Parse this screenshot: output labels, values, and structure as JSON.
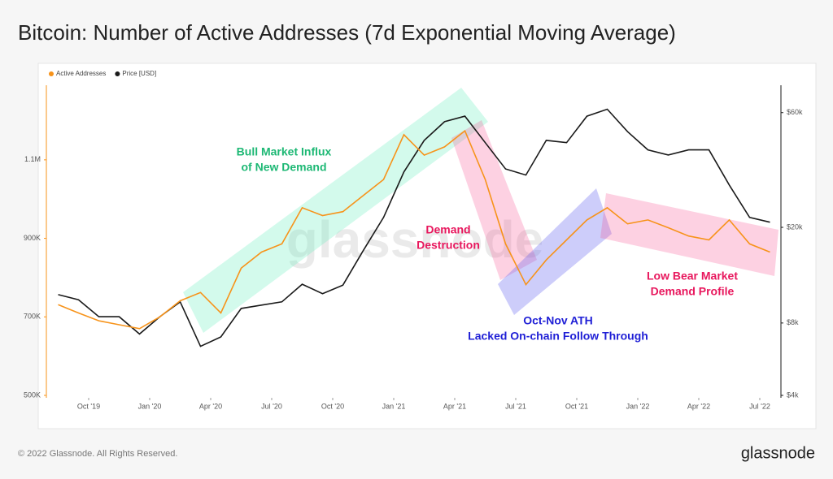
{
  "page_title": "Bitcoin: Number of Active Addresses (7d Exponential Moving Average)",
  "footer": {
    "copyright": "© 2022 Glassnode. All Rights Reserved.",
    "logo": "glassnode"
  },
  "chart_data": {
    "type": "line",
    "watermark": "glassnode",
    "x": [
      "2019-08",
      "2019-09",
      "2019-10",
      "2019-11",
      "2019-12",
      "2020-01",
      "2020-02",
      "2020-03",
      "2020-04",
      "2020-05",
      "2020-06",
      "2020-07",
      "2020-08",
      "2020-09",
      "2020-10",
      "2020-11",
      "2020-12",
      "2021-01",
      "2021-02",
      "2021-03",
      "2021-04",
      "2021-05",
      "2021-06",
      "2021-07",
      "2021-08",
      "2021-09",
      "2021-10",
      "2021-11",
      "2021-12",
      "2022-01",
      "2022-02",
      "2022-03",
      "2022-04",
      "2022-05",
      "2022-06",
      "2022-07"
    ],
    "xticks": [
      {
        "value": "2019-10",
        "label": "Oct '19"
      },
      {
        "value": "2020-01",
        "label": "Jan '20"
      },
      {
        "value": "2020-04",
        "label": "Apr '20"
      },
      {
        "value": "2020-07",
        "label": "Jul '20"
      },
      {
        "value": "2020-10",
        "label": "Oct '20"
      },
      {
        "value": "2021-01",
        "label": "Jan '21"
      },
      {
        "value": "2021-04",
        "label": "Apr '21"
      },
      {
        "value": "2021-07",
        "label": "Jul '21"
      },
      {
        "value": "2021-10",
        "label": "Oct '21"
      },
      {
        "value": "2022-01",
        "label": "Jan '22"
      },
      {
        "value": "2022-04",
        "label": "Apr '22"
      },
      {
        "value": "2022-07",
        "label": "Jul '22"
      }
    ],
    "ylim": [
      500000,
      1290000
    ],
    "yticks": [
      {
        "value": 500000,
        "label": "500K"
      },
      {
        "value": 700000,
        "label": "700K"
      },
      {
        "value": 900000,
        "label": "900K"
      },
      {
        "value": 1100000,
        "label": "1.1M"
      }
    ],
    "y2lim": [
      4000,
      78000
    ],
    "y2log": true,
    "y2ticks": [
      {
        "value": 4000,
        "label": "$4k"
      },
      {
        "value": 8000,
        "label": "$8k"
      },
      {
        "value": 20000,
        "label": "$20k"
      },
      {
        "value": 60000,
        "label": "$60k"
      }
    ],
    "legend": "top-left",
    "series": [
      {
        "name": "Active Addresses",
        "color": "#f7931a",
        "values": [
          731000,
          710000,
          690000,
          680000,
          670000,
          700000,
          741000,
          762000,
          710000,
          824000,
          865000,
          886000,
          978000,
          958000,
          968000,
          1009000,
          1050000,
          1164000,
          1112000,
          1133000,
          1174000,
          1050000,
          886000,
          782000,
          845000,
          896000,
          947000,
          978000,
          937000,
          947000,
          927000,
          906000,
          896000,
          947000,
          886000,
          865000
        ]
      },
      {
        "name": "Price [USD]",
        "color": "#1a1a1a",
        "axis": "y2",
        "values": [
          10500,
          10000,
          8500,
          8500,
          7200,
          8500,
          9800,
          6400,
          7000,
          9200,
          9500,
          9800,
          11600,
          10600,
          11500,
          16000,
          22000,
          34000,
          46000,
          55000,
          58000,
          45000,
          35000,
          33000,
          46000,
          45000,
          58000,
          62000,
          50000,
          42000,
          40000,
          42000,
          42000,
          30000,
          22000,
          21000
        ]
      }
    ],
    "annotations": [
      {
        "lines": [
          "Bull Market Influx",
          "of New Demand"
        ],
        "color": "#1db874"
      },
      {
        "lines": [
          "Demand",
          "Destruction"
        ],
        "color": "#e8175d"
      },
      {
        "lines": [
          "Low Bear Market",
          "Demand Profile"
        ],
        "color": "#e8175d"
      },
      {
        "lines": [
          "Oct-Nov ATH",
          "Lacked On-chain Follow Through"
        ],
        "color": "#1f1fd6"
      }
    ]
  }
}
